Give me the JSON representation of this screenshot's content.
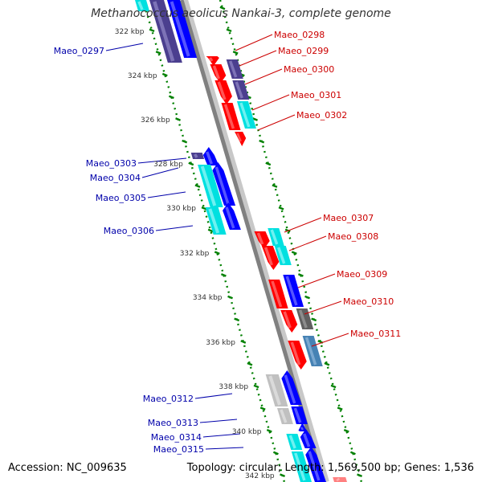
{
  "title": "Methanococcus aeolicus Nankai-3, complete genome",
  "footer": {
    "accession_label": "Accession:",
    "accession": "NC_009635",
    "topology_label": "Topology:",
    "topology": "circular",
    "length_label": "Length:",
    "length": "1,569,500 bp",
    "genes_label": "Genes:",
    "genes": "1,536"
  },
  "colors": {
    "backbone": "#808080",
    "tick": "#008000",
    "label_forward": "#cc0000",
    "label_reverse": "#0000aa",
    "axis_text": "#333333"
  },
  "scale": {
    "unit": "kbp",
    "ticks": [
      "322 kbp",
      "324 kbp",
      "326 kbp",
      "328 kbp",
      "330 kbp",
      "332 kbp",
      "334 kbp",
      "336 kbp",
      "338 kbp",
      "340 kbp",
      "342 kbp"
    ]
  },
  "genes": [
    {
      "name": "Maeo_0297",
      "strand": "reverse"
    },
    {
      "name": "Maeo_0298",
      "strand": "forward"
    },
    {
      "name": "Maeo_0299",
      "strand": "forward"
    },
    {
      "name": "Maeo_0300",
      "strand": "forward"
    },
    {
      "name": "Maeo_0301",
      "strand": "forward"
    },
    {
      "name": "Maeo_0302",
      "strand": "forward"
    },
    {
      "name": "Maeo_0303",
      "strand": "reverse"
    },
    {
      "name": "Maeo_0304",
      "strand": "reverse"
    },
    {
      "name": "Maeo_0305",
      "strand": "reverse"
    },
    {
      "name": "Maeo_0306",
      "strand": "reverse"
    },
    {
      "name": "Maeo_0307",
      "strand": "forward"
    },
    {
      "name": "Maeo_0308",
      "strand": "forward"
    },
    {
      "name": "Maeo_0309",
      "strand": "forward"
    },
    {
      "name": "Maeo_0310",
      "strand": "forward"
    },
    {
      "name": "Maeo_0311",
      "strand": "forward"
    },
    {
      "name": "Maeo_0312",
      "strand": "reverse"
    },
    {
      "name": "Maeo_0313",
      "strand": "reverse"
    },
    {
      "name": "Maeo_0314",
      "strand": "reverse"
    },
    {
      "name": "Maeo_0315",
      "strand": "reverse"
    }
  ]
}
